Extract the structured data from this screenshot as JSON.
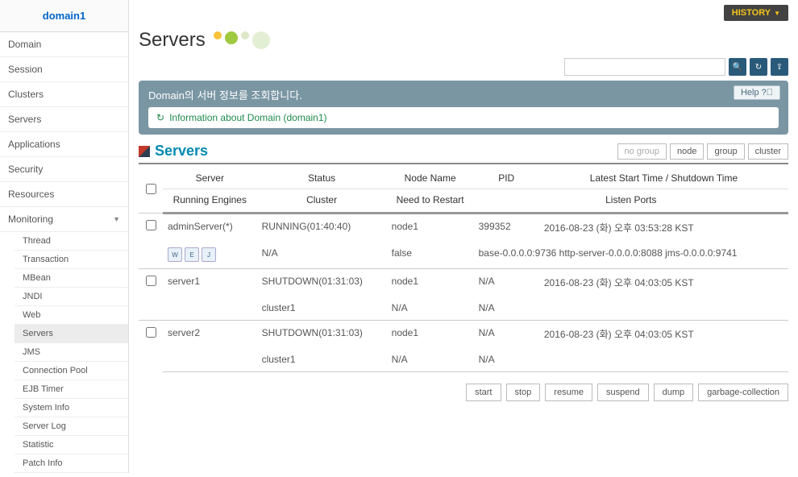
{
  "domain_name": "domain1",
  "history_label": "HISTORY",
  "nav": {
    "domain": "Domain",
    "session": "Session",
    "clusters": "Clusters",
    "servers": "Servers",
    "applications": "Applications",
    "security": "Security",
    "resources": "Resources",
    "monitoring": "Monitoring",
    "sub": {
      "thread": "Thread",
      "transaction": "Transaction",
      "mbean": "MBean",
      "jndi": "JNDI",
      "web": "Web",
      "servers": "Servers",
      "jms": "JMS",
      "connpool": "Connection Pool",
      "ejbtimer": "EJB Timer",
      "sysinfo": "System Info",
      "serverlog": "Server Log",
      "statistic": "Statistic",
      "patchinfo": "Patch Info"
    }
  },
  "page_title": "Servers",
  "infobox": {
    "title": "Domain의 서버 정보를 조회합니다.",
    "detail": "Information about Domain (domain1)",
    "help": "Help"
  },
  "section_title": "Servers",
  "filters": {
    "nogroup": "no group",
    "node": "node",
    "group": "group",
    "cluster": "cluster"
  },
  "headers": {
    "server": "Server",
    "status": "Status",
    "nodename": "Node Name",
    "pid": "PID",
    "latest": "Latest Start Time / Shutdown Time",
    "engines": "Running Engines",
    "cluster": "Cluster",
    "restart": "Need to Restart",
    "ports": "Listen Ports"
  },
  "rows": [
    {
      "server": "adminServer(*)",
      "status": "RUNNING(01:40:40)",
      "node": "node1",
      "pid": "399352",
      "time": "2016-08-23 (화) 오후 03:53:28 KST",
      "engines_html": true,
      "cluster": "N/A",
      "restart": "false",
      "ports": "base-0.0.0.0:9736  http-server-0.0.0.0:8088  jms-0.0.0.0:9741"
    },
    {
      "server": "server1",
      "status": "SHUTDOWN(01:31:03)",
      "node": "node1",
      "pid": "N/A",
      "time": "2016-08-23 (화) 오후 04:03:05 KST",
      "engines_html": false,
      "cluster": "cluster1",
      "restart": "N/A",
      "ports": "N/A"
    },
    {
      "server": "server2",
      "status": "SHUTDOWN(01:31:03)",
      "node": "node1",
      "pid": "N/A",
      "time": "2016-08-23 (화) 오후 04:03:05 KST",
      "engines_html": false,
      "cluster": "cluster1",
      "restart": "N/A",
      "ports": "N/A"
    }
  ],
  "actions": {
    "start": "start",
    "stop": "stop",
    "resume": "resume",
    "suspend": "suspend",
    "dump": "dump",
    "gc": "garbage-collection"
  },
  "colors": {
    "accent": "#028ab0",
    "infobox_bg": "#7a96a3",
    "info_text": "#1f8a4c"
  }
}
